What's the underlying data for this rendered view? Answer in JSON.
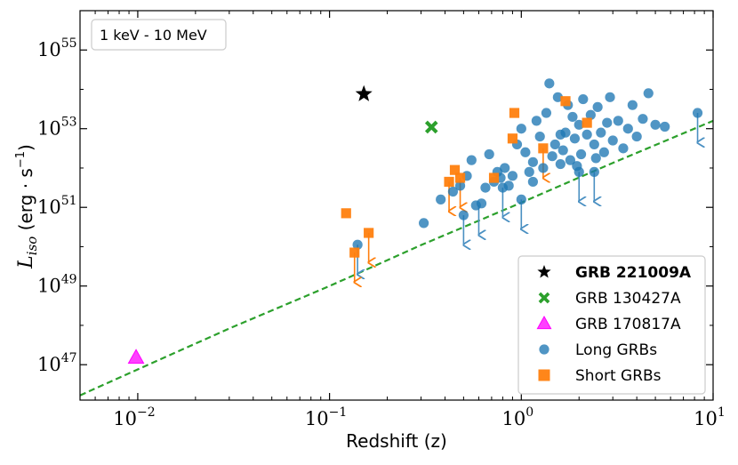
{
  "chart_data": {
    "type": "scatter",
    "title": "",
    "xlabel": "Redshift (z)",
    "ylabel_base": "L",
    "ylabel_sub": "iso",
    "ylabel_units": "(erg · s",
    "ylabel_units_exp": "−1",
    "ylabel_units_close": ")",
    "xscale": "log",
    "yscale": "log",
    "xlim": [
      0.005,
      10
    ],
    "ylim_log10": [
      46.1,
      56.0
    ],
    "x_ticks": [
      {
        "base": "10",
        "exp": "−2",
        "value": 0.01
      },
      {
        "base": "10",
        "exp": "−1",
        "value": 0.1
      },
      {
        "base": "10",
        "exp": "0",
        "value": 1
      },
      {
        "base": "10",
        "exp": "1",
        "value": 10
      }
    ],
    "y_ticks": [
      {
        "base": "10",
        "exp": "47",
        "log": 47
      },
      {
        "base": "10",
        "exp": "49",
        "log": 49
      },
      {
        "base": "10",
        "exp": "51",
        "log": 51
      },
      {
        "base": "10",
        "exp": "53",
        "log": 53
      },
      {
        "base": "10",
        "exp": "55",
        "log": 55
      }
    ],
    "annotation": "1 keV - 10 MeV",
    "threshold_line": {
      "name": "detection threshold",
      "color": "#2ca02c",
      "points": [
        [
          0.005,
          46.22
        ],
        [
          0.01,
          46.88
        ],
        [
          0.03,
          47.92
        ],
        [
          0.1,
          49.0
        ],
        [
          0.3,
          50.04
        ],
        [
          1.0,
          51.12
        ],
        [
          3.0,
          52.13
        ],
        [
          10.0,
          53.2
        ]
      ]
    },
    "series": [
      {
        "name": "GRB 221009A",
        "marker": "star",
        "color": "#000000",
        "bold": true,
        "points": [
          [
            0.151,
            53.88
          ]
        ]
      },
      {
        "name": "GRB 130427A",
        "marker": "x",
        "color": "#2ca02c",
        "points": [
          [
            0.34,
            53.04
          ]
        ]
      },
      {
        "name": "GRB 170817A",
        "marker": "triangle",
        "color": "#ff00ff",
        "points": [
          [
            0.0098,
            47.18
          ]
        ]
      },
      {
        "name": "Long GRBs",
        "marker": "circle",
        "color": "#1f77b4",
        "points": [
          [
            0.31,
            50.6
          ],
          [
            0.38,
            51.2
          ],
          [
            0.44,
            51.4
          ],
          [
            0.48,
            51.55
          ],
          [
            0.52,
            51.8
          ],
          [
            0.55,
            52.2
          ],
          [
            0.58,
            51.05
          ],
          [
            0.62,
            51.1
          ],
          [
            0.65,
            51.5
          ],
          [
            0.68,
            52.35
          ],
          [
            0.72,
            51.65
          ],
          [
            0.75,
            51.9
          ],
          [
            0.78,
            51.75
          ],
          [
            0.82,
            52.0
          ],
          [
            0.86,
            51.55
          ],
          [
            0.9,
            51.8
          ],
          [
            0.95,
            52.6
          ],
          [
            1.0,
            53.0
          ],
          [
            1.05,
            52.4
          ],
          [
            1.1,
            51.9
          ],
          [
            1.15,
            52.15
          ],
          [
            1.2,
            53.2
          ],
          [
            1.25,
            52.8
          ],
          [
            1.3,
            52.0
          ],
          [
            1.35,
            53.4
          ],
          [
            1.4,
            54.15
          ],
          [
            1.45,
            52.3
          ],
          [
            1.5,
            52.6
          ],
          [
            1.55,
            53.8
          ],
          [
            1.6,
            52.1
          ],
          [
            1.65,
            52.45
          ],
          [
            1.7,
            52.9
          ],
          [
            1.75,
            53.6
          ],
          [
            1.8,
            52.2
          ],
          [
            1.85,
            53.3
          ],
          [
            1.9,
            52.75
          ],
          [
            1.95,
            52.05
          ],
          [
            2.0,
            53.1
          ],
          [
            2.05,
            52.35
          ],
          [
            2.1,
            53.75
          ],
          [
            2.2,
            52.85
          ],
          [
            2.3,
            53.35
          ],
          [
            2.4,
            52.6
          ],
          [
            2.5,
            53.55
          ],
          [
            2.6,
            52.9
          ],
          [
            2.7,
            52.4
          ],
          [
            2.8,
            53.15
          ],
          [
            2.9,
            53.8
          ],
          [
            3.0,
            52.7
          ],
          [
            3.2,
            53.2
          ],
          [
            3.4,
            52.5
          ],
          [
            3.6,
            53.0
          ],
          [
            3.8,
            53.6
          ],
          [
            4.0,
            52.8
          ],
          [
            4.3,
            53.25
          ],
          [
            4.6,
            53.9
          ],
          [
            5.0,
            53.1
          ],
          [
            5.6,
            53.05
          ],
          [
            2.45,
            52.25
          ],
          [
            1.6,
            52.85
          ],
          [
            1.15,
            51.65
          ],
          [
            0.5,
            50.8
          ],
          [
            0.14,
            50.05
          ],
          [
            8.3,
            53.4
          ],
          [
            0.8,
            51.5
          ],
          [
            1.0,
            51.2
          ],
          [
            2.0,
            51.9
          ],
          [
            2.4,
            51.9
          ]
        ]
      },
      {
        "name": "Short GRBs",
        "marker": "square",
        "color": "#ff7f0e",
        "points": [
          [
            0.122,
            50.85
          ],
          [
            0.135,
            49.85
          ],
          [
            0.16,
            50.35
          ],
          [
            0.42,
            51.65
          ],
          [
            0.45,
            51.95
          ],
          [
            0.48,
            51.75
          ],
          [
            0.72,
            51.75
          ],
          [
            0.9,
            52.75
          ],
          [
            0.92,
            53.4
          ],
          [
            1.3,
            52.5
          ],
          [
            1.7,
            53.7
          ],
          [
            2.2,
            53.15
          ]
        ]
      }
    ],
    "upper_limits": [
      {
        "series": "Long GRBs",
        "from": [
          0.5,
          50.8
        ],
        "to": [
          0.5,
          50.05
        ]
      },
      {
        "series": "Long GRBs",
        "from": [
          0.14,
          50.05
        ],
        "to": [
          0.14,
          49.3
        ]
      },
      {
        "series": "Long GRBs",
        "from": [
          0.6,
          51.05
        ],
        "to": [
          0.6,
          50.3
        ]
      },
      {
        "series": "Long GRBs",
        "from": [
          0.8,
          51.5
        ],
        "to": [
          0.8,
          50.75
        ]
      },
      {
        "series": "Long GRBs",
        "from": [
          1.0,
          51.2
        ],
        "to": [
          1.0,
          50.45
        ]
      },
      {
        "series": "Long GRBs",
        "from": [
          2.0,
          51.9
        ],
        "to": [
          2.0,
          51.15
        ]
      },
      {
        "series": "Long GRBs",
        "from": [
          2.4,
          51.9
        ],
        "to": [
          2.4,
          51.15
        ]
      },
      {
        "series": "Long GRBs",
        "from": [
          8.3,
          53.4
        ],
        "to": [
          8.3,
          52.65
        ]
      },
      {
        "series": "Short GRBs",
        "from": [
          0.135,
          49.85
        ],
        "to": [
          0.135,
          49.1
        ]
      },
      {
        "series": "Short GRBs",
        "from": [
          0.16,
          50.35
        ],
        "to": [
          0.16,
          49.6
        ]
      },
      {
        "series": "Short GRBs",
        "from": [
          0.42,
          51.65
        ],
        "to": [
          0.42,
          50.9
        ]
      },
      {
        "series": "Short GRBs",
        "from": [
          0.48,
          51.75
        ],
        "to": [
          0.48,
          51.0
        ]
      },
      {
        "series": "Short GRBs",
        "from": [
          1.3,
          52.5
        ],
        "to": [
          1.3,
          51.75
        ]
      }
    ],
    "legend_position": "bottom-right"
  }
}
